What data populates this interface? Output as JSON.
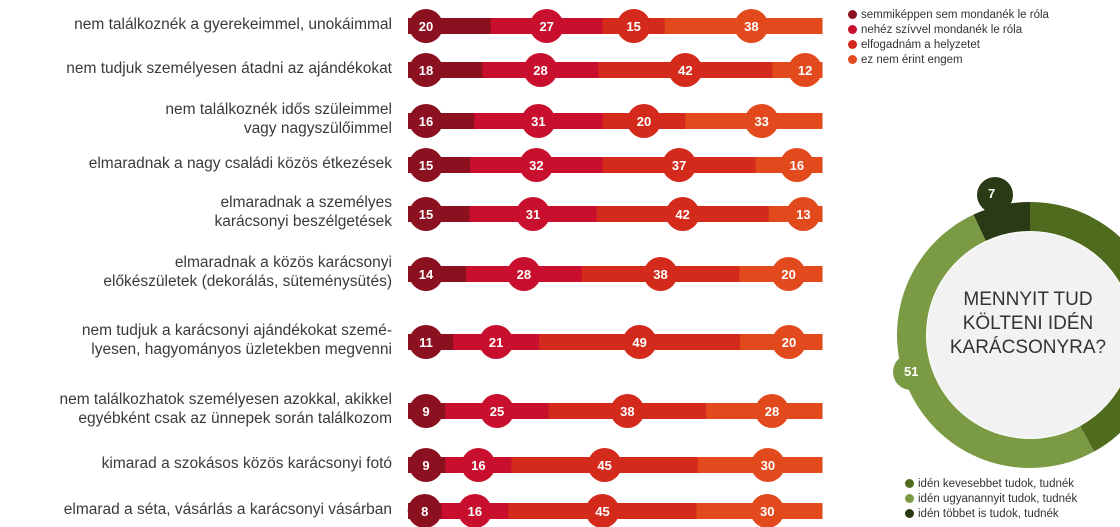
{
  "chart_data": [
    {
      "type": "bar",
      "stacked": true,
      "orientation": "horizontal",
      "categories": [
        [
          "nem találkoznék a gyerekeimmel, unokáimmal"
        ],
        [
          "nem tudjuk személyesen átadni az ajándékokat"
        ],
        [
          "nem találkoznék idős szüleimmel",
          "vagy nagyszülőimmel"
        ],
        [
          "elmaradnak a nagy családi közös étkezések"
        ],
        [
          "elmaradnak a személyes",
          "karácsonyi beszélgetések"
        ],
        [
          "elmaradnak a közös karácsonyi",
          "előkészületek (dekorálás, süteménysütés)"
        ],
        [
          "nem tudjuk a karácsonyi ajándékokat szemé-",
          "lyesen, hagyományos üzletekben megvenni"
        ],
        [
          "nem találkozhatok személyesen azokkal, akikkel",
          "egyébként csak az ünnepek során találkozom"
        ],
        [
          "kimarad a szokásos közös karácsonyi fotó"
        ],
        [
          "elmarad a séta, vásárlás a karácsonyi vásárban"
        ]
      ],
      "series": [
        {
          "name": "semmiképpen sem mondanék le róla",
          "color": "#8b1020",
          "values": [
            20,
            18,
            16,
            15,
            15,
            14,
            11,
            9,
            9,
            8
          ]
        },
        {
          "name": "nehéz szívvel mondanék le róla",
          "color": "#c8102e",
          "values": [
            27,
            28,
            31,
            32,
            31,
            28,
            21,
            25,
            16,
            16
          ]
        },
        {
          "name": "elfogadnám a helyzetet",
          "color": "#d42a1c",
          "values": [
            15,
            42,
            20,
            37,
            42,
            38,
            49,
            38,
            45,
            45
          ]
        },
        {
          "name": "ez nem érint engem",
          "color": "#e24a1e",
          "values": [
            38,
            12,
            33,
            16,
            13,
            20,
            20,
            28,
            30,
            30
          ]
        }
      ]
    },
    {
      "type": "pie",
      "donut": true,
      "center_text": [
        "MENNYIT TUD",
        "KÖLTENI IDÉN",
        "KARÁCSONYRA?"
      ],
      "slices": [
        {
          "name": "idén kevesebbet tudok, tudnék",
          "value": 42,
          "color": "#4e6b1e"
        },
        {
          "name": "idén ugyanannyit tudok, tudnék",
          "value": 51,
          "color": "#7b9a44"
        },
        {
          "name": "idén többet is tudok, tudnék",
          "value": 7,
          "color": "#2a3a14"
        }
      ],
      "visible_labels": [
        "51",
        "7"
      ]
    }
  ]
}
